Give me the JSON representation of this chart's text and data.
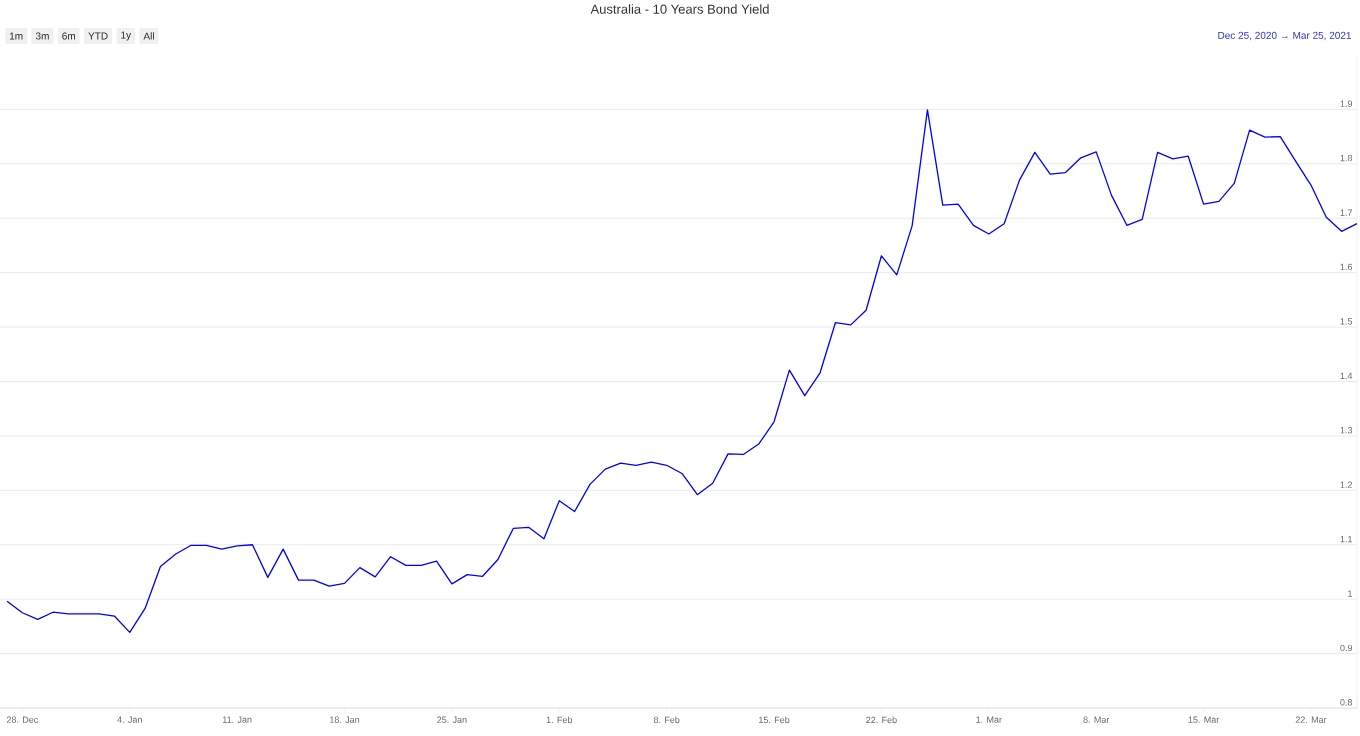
{
  "chart_data": {
    "type": "line",
    "title": "Australia - 10 Years Bond Yield",
    "annotations": [
      "1m",
      "3m",
      "6m",
      "YTD",
      "1y",
      "All",
      "Dec 25, 2020 → Mar 25, 2021"
    ],
    "x": [
      "2020-12-27",
      "2020-12-28",
      "2020-12-29",
      "2020-12-30",
      "2020-12-31",
      "2021-01-01",
      "2021-01-02",
      "2021-01-03",
      "2021-01-04",
      "2021-01-05",
      "2021-01-06",
      "2021-01-07",
      "2021-01-08",
      "2021-01-09",
      "2021-01-10",
      "2021-01-11",
      "2021-01-12",
      "2021-01-13",
      "2021-01-14",
      "2021-01-15",
      "2021-01-16",
      "2021-01-17",
      "2021-01-18",
      "2021-01-19",
      "2021-01-20",
      "2021-01-21",
      "2021-01-22",
      "2021-01-23",
      "2021-01-24",
      "2021-01-25",
      "2021-01-26",
      "2021-01-27",
      "2021-01-28",
      "2021-01-29",
      "2021-01-30",
      "2021-01-31",
      "2021-02-01",
      "2021-02-02",
      "2021-02-03",
      "2021-02-04",
      "2021-02-05",
      "2021-02-06",
      "2021-02-07",
      "2021-02-08",
      "2021-02-09",
      "2021-02-10",
      "2021-02-11",
      "2021-02-12",
      "2021-02-13",
      "2021-02-14",
      "2021-02-15",
      "2021-02-16",
      "2021-02-17",
      "2021-02-18",
      "2021-02-19",
      "2021-02-20",
      "2021-02-21",
      "2021-02-22",
      "2021-02-23",
      "2021-02-24",
      "2021-02-25",
      "2021-02-26",
      "2021-02-27",
      "2021-02-28",
      "2021-03-01",
      "2021-03-02",
      "2021-03-03",
      "2021-03-04",
      "2021-03-05",
      "2021-03-06",
      "2021-03-07",
      "2021-03-08",
      "2021-03-09",
      "2021-03-10",
      "2021-03-11",
      "2021-03-12",
      "2021-03-13",
      "2021-03-14",
      "2021-03-15",
      "2021-03-16",
      "2021-03-17",
      "2021-03-18",
      "2021-03-19",
      "2021-03-20",
      "2021-03-21",
      "2021-03-22",
      "2021-03-23",
      "2021-03-24",
      "2021-03-25"
    ],
    "series": [
      {
        "color": "#0000ff",
        "values": [
          0.996,
          0.975,
          0.963,
          0.976,
          0.973,
          0.973,
          0.973,
          0.969,
          0.939,
          0.983,
          1.06,
          1.083,
          1.099,
          1.099,
          1.092,
          1.098,
          1.1,
          1.04,
          1.092,
          1.035,
          1.035,
          1.024,
          1.029,
          1.058,
          1.041,
          1.078,
          1.062,
          1.062,
          1.07,
          1.028,
          1.045,
          1.042,
          1.073,
          1.13,
          1.132,
          1.111,
          1.181,
          1.161,
          1.211,
          1.239,
          1.25,
          1.246,
          1.252,
          1.246,
          1.231,
          1.192,
          1.213,
          1.267,
          1.266,
          1.285,
          1.326,
          1.421,
          1.374,
          1.416,
          1.508,
          1.504,
          1.531,
          1.631,
          1.596,
          1.686,
          1.899,
          1.724,
          1.726,
          1.687,
          1.671,
          1.69,
          1.77,
          1.821,
          1.781,
          1.784,
          1.811,
          1.822,
          1.742,
          1.687,
          1.698,
          1.821,
          1.809,
          1.814,
          1.726,
          1.731,
          1.764,
          1.862,
          1.849,
          1.85,
          1.805,
          1.761,
          1.702,
          1.676,
          1.69
        ]
      }
    ],
    "xlim": [
      "2020-12-26T13:00",
      "2021-03-25"
    ],
    "xticks": [
      {
        "value": "2020-12-28",
        "label": "28. Dec"
      },
      {
        "value": "2021-01-04",
        "label": "4. Jan"
      },
      {
        "value": "2021-01-11",
        "label": "11. Jan"
      },
      {
        "value": "2021-01-18",
        "label": "18. Jan"
      },
      {
        "value": "2021-01-25",
        "label": "25. Jan"
      },
      {
        "value": "2021-02-01",
        "label": "1. Feb"
      },
      {
        "value": "2021-02-08",
        "label": "8. Feb"
      },
      {
        "value": "2021-02-15",
        "label": "15. Feb"
      },
      {
        "value": "2021-02-22",
        "label": "22. Feb"
      },
      {
        "value": "2021-03-01",
        "label": "1. Mar"
      },
      {
        "value": "2021-03-08",
        "label": "8. Mar"
      },
      {
        "value": "2021-03-15",
        "label": "15. Mar"
      },
      {
        "value": "2021-03-22",
        "label": "22. Mar"
      }
    ],
    "ylim": [
      0.8,
      2.0
    ],
    "yticks": [
      0.8,
      0.9,
      1,
      1.1,
      1.2,
      1.3,
      1.4,
      1.5,
      1.6,
      1.7,
      1.8,
      1.9
    ],
    "grid": "y"
  }
}
